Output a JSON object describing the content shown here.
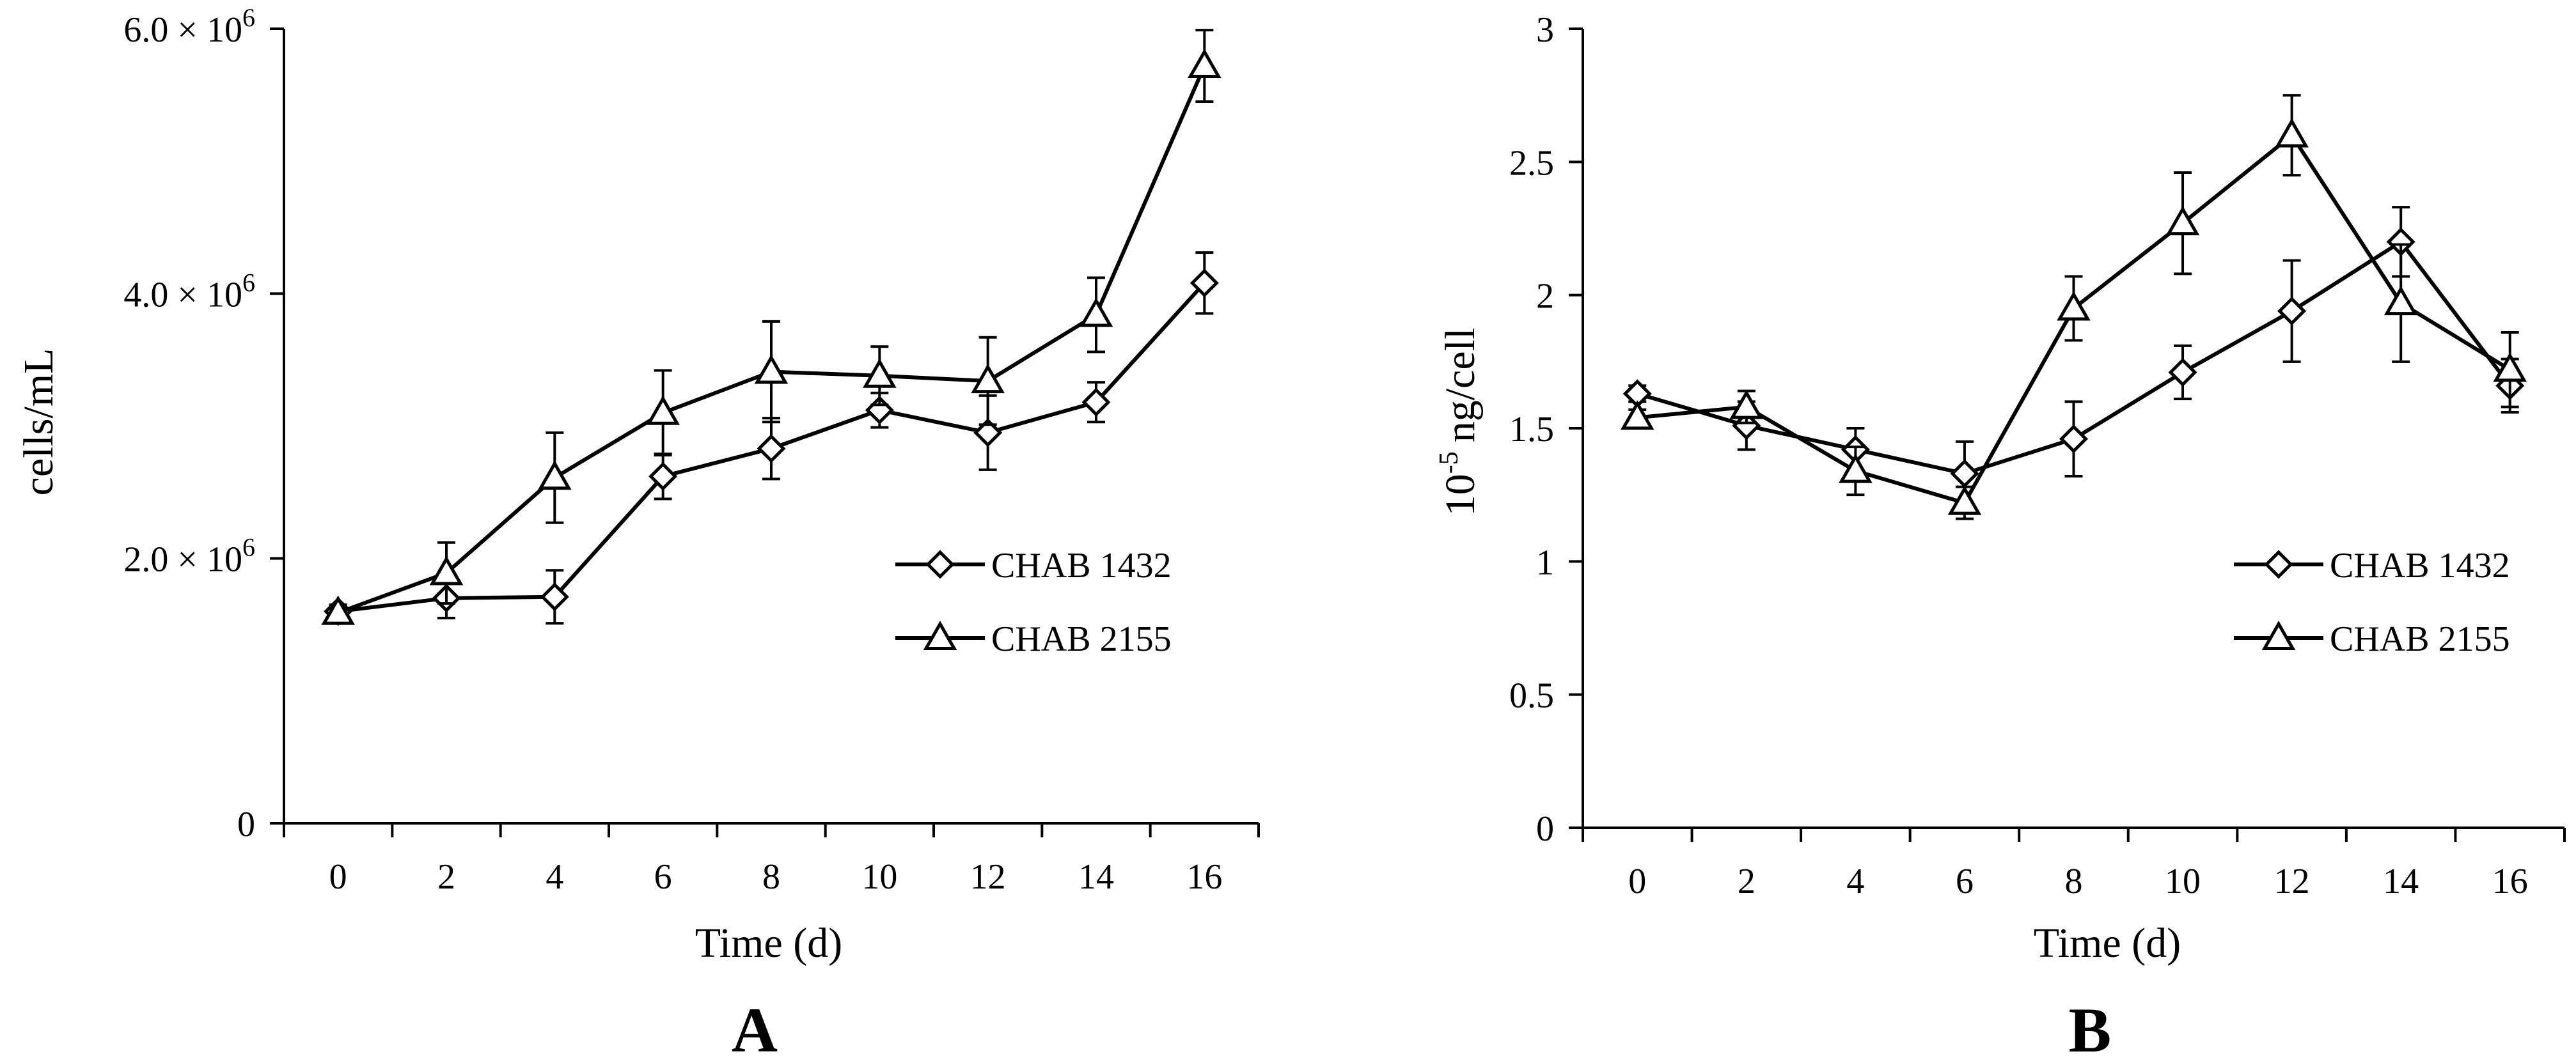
{
  "chart_data": [
    {
      "type": "line",
      "panel_label": "A",
      "xlabel": "Time (d)",
      "ylabel": "cells/mL",
      "x": [
        0,
        2,
        4,
        6,
        8,
        10,
        12,
        14,
        16
      ],
      "xlim": [
        -1,
        17
      ],
      "ylim": [
        0,
        6000000
      ],
      "y_ticks": [
        0,
        2000000,
        4000000,
        6000000
      ],
      "y_tick_labels": [
        "0",
        "2.0 × 10⁶",
        "4.0 × 10⁶",
        "6.0 × 10⁶"
      ],
      "grid": false,
      "legend_position": "center-right",
      "series": [
        {
          "name": "CHAB 1432",
          "marker": "diamond",
          "values": [
            1600000,
            1700000,
            1710000,
            2620000,
            2830000,
            3120000,
            2950000,
            3180000,
            4080000
          ],
          "errors": [
            50000,
            150000,
            200000,
            170000,
            230000,
            130000,
            280000,
            150000,
            230000
          ]
        },
        {
          "name": "CHAB 2155",
          "marker": "triangle",
          "values": [
            1590000,
            1890000,
            2610000,
            3100000,
            3410000,
            3380000,
            3340000,
            3840000,
            5720000
          ],
          "errors": [
            50000,
            230000,
            340000,
            320000,
            380000,
            220000,
            330000,
            280000,
            270000
          ]
        }
      ]
    },
    {
      "type": "line",
      "panel_label": "B",
      "xlabel": "Time (d)",
      "ylabel_main": "ng/cell",
      "ylabel_prefix": "10",
      "ylabel_exp": "-5",
      "x": [
        0,
        2,
        4,
        6,
        8,
        10,
        12,
        14,
        16
      ],
      "xlim": [
        -1,
        17
      ],
      "ylim": [
        0,
        3
      ],
      "y_ticks": [
        0,
        0.5,
        1,
        1.5,
        2,
        2.5,
        3
      ],
      "y_tick_labels": [
        "0",
        "0.5",
        "1",
        "1.5",
        "2",
        "2.5",
        "3"
      ],
      "grid": false,
      "legend_position": "center-right",
      "series": [
        {
          "name": "CHAB 1432",
          "marker": "diamond",
          "values": [
            1.63,
            1.51,
            1.42,
            1.33,
            1.46,
            1.71,
            1.94,
            2.2,
            1.66
          ],
          "errors": [
            0.03,
            0.09,
            0.08,
            0.12,
            0.14,
            0.1,
            0.19,
            0.13,
            0.1
          ]
        },
        {
          "name": "CHAB 2155",
          "marker": "triangle",
          "values": [
            1.54,
            1.58,
            1.34,
            1.22,
            1.95,
            2.27,
            2.6,
            1.97,
            1.72
          ],
          "errors": [
            0.03,
            0.06,
            0.09,
            0.06,
            0.12,
            0.19,
            0.15,
            0.22,
            0.14
          ]
        }
      ]
    }
  ]
}
